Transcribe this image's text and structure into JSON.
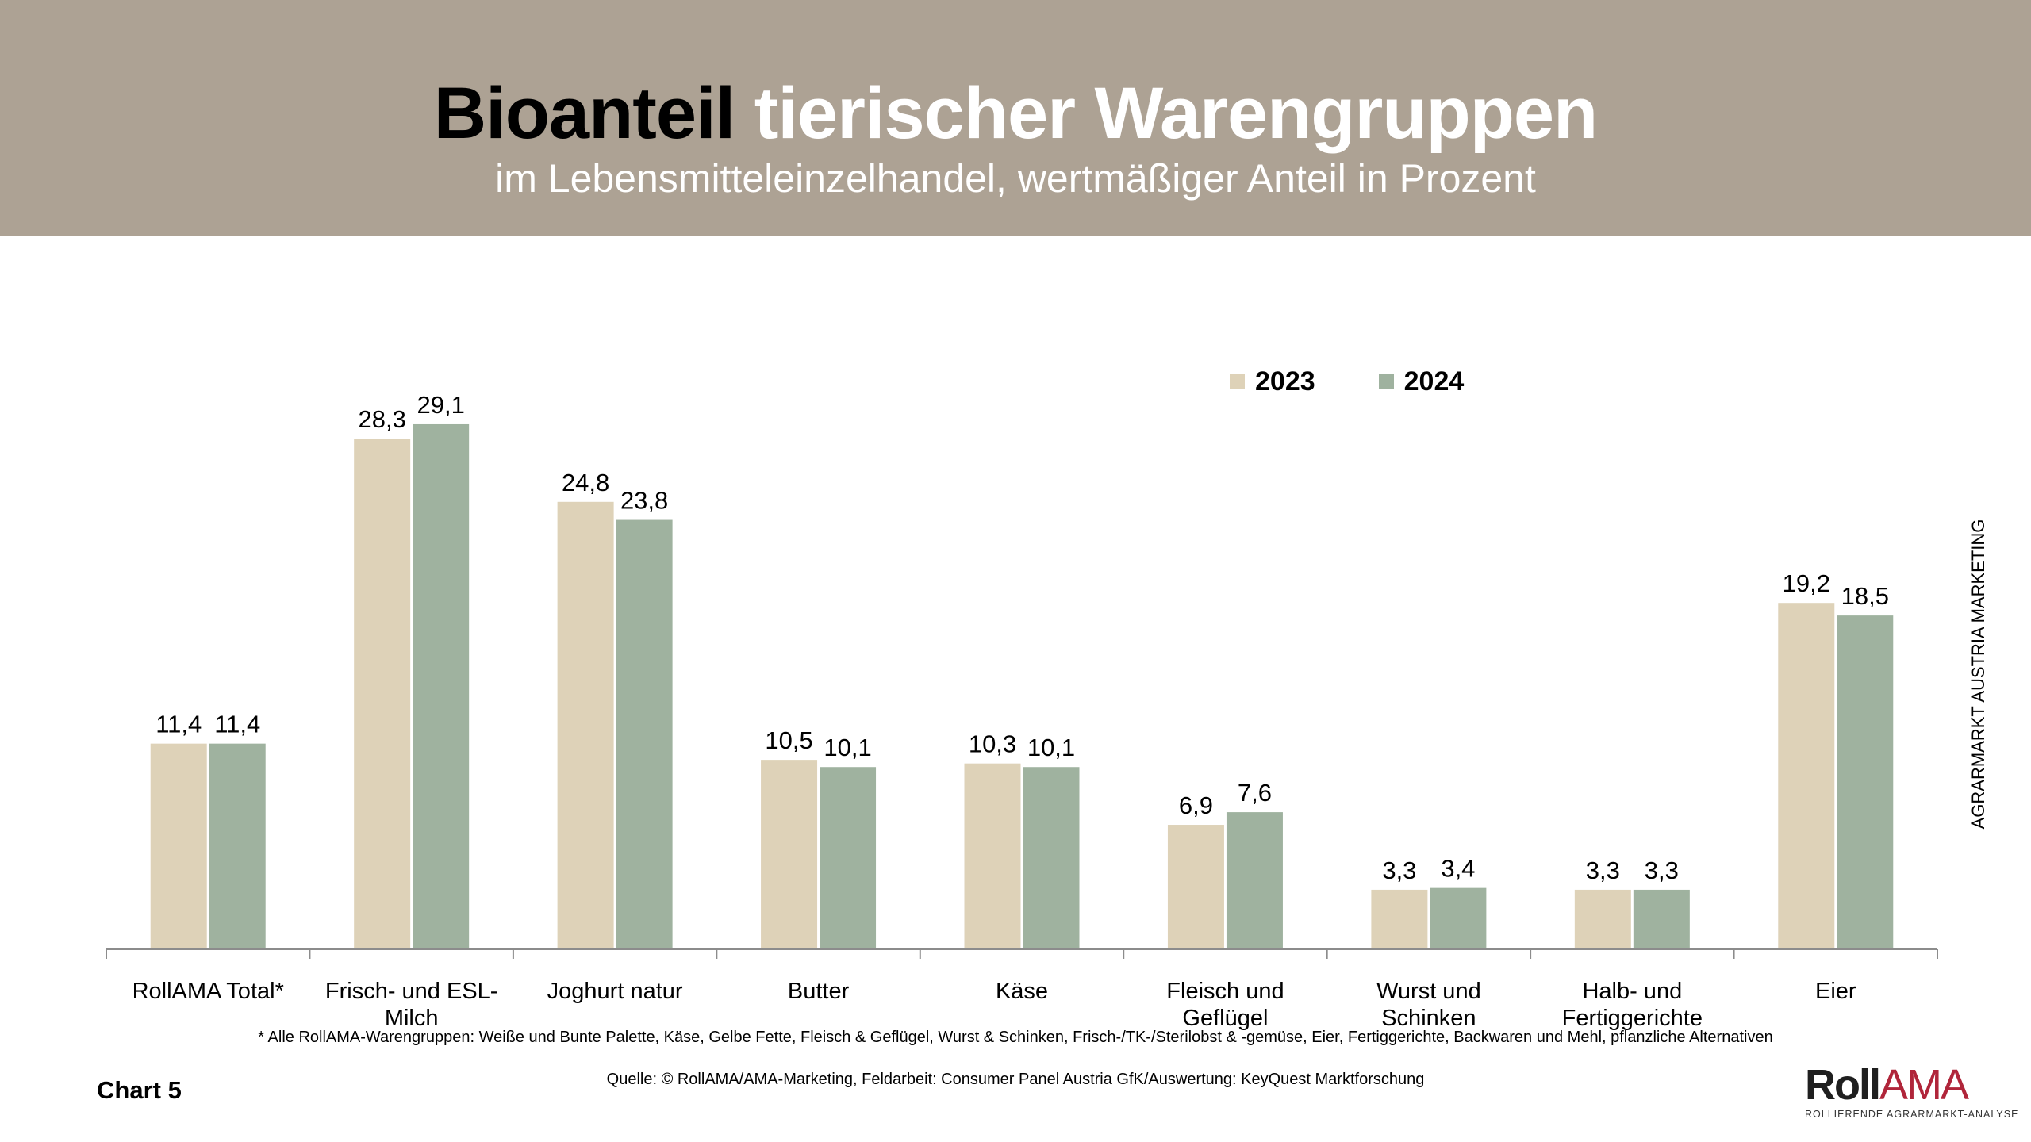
{
  "header": {
    "title_dark": "Bioanteil",
    "title_light": "tierischer Warengruppen",
    "subtitle": "im Lebensmitteleinzelhandel, wertmäßiger Anteil in Prozent",
    "background_color": "#ada294"
  },
  "chart_data": {
    "type": "bar",
    "title": "Bioanteil tierischer Warengruppen",
    "subtitle": "im Lebensmitteleinzelhandel, wertmäßiger Anteil in Prozent",
    "xlabel": "",
    "ylabel": "",
    "ylim": [
      0,
      30
    ],
    "grid": false,
    "legend_position": "top-right",
    "categories": [
      [
        "RollAMA Total*"
      ],
      [
        "Frisch- und ESL-",
        "Milch"
      ],
      [
        "Joghurt natur"
      ],
      [
        "Butter"
      ],
      [
        "Käse"
      ],
      [
        "Fleisch und",
        "Geflügel"
      ],
      [
        "Wurst und",
        "Schinken"
      ],
      [
        "Halb- und",
        "Fertiggerichte"
      ],
      [
        "Eier"
      ]
    ],
    "series": [
      {
        "name": "2023",
        "color": "#ded2b8",
        "values": [
          11.4,
          28.3,
          24.8,
          10.5,
          10.3,
          6.9,
          3.3,
          3.3,
          19.2
        ],
        "labels": [
          "11,4",
          "28,3",
          "24,8",
          "10,5",
          "10,3",
          "6,9",
          "3,3",
          "3,3",
          "19,2"
        ]
      },
      {
        "name": "2024",
        "color": "#9fb29f",
        "values": [
          11.4,
          29.1,
          23.8,
          10.1,
          10.1,
          7.6,
          3.4,
          3.3,
          18.5
        ],
        "labels": [
          "11,4",
          "29,1",
          "23,8",
          "10,1",
          "10,1",
          "7,6",
          "3,4",
          "3,3",
          "18,5"
        ]
      }
    ]
  },
  "legend": {
    "items": [
      {
        "label": "2023",
        "color": "#ded2b8"
      },
      {
        "label": "2024",
        "color": "#9fb29f"
      }
    ]
  },
  "side_label": "AGRARMARKT AUSTRIA MARKETING",
  "footnote": "* Alle RollAMA-Warengruppen: Weiße und Bunte Palette, Käse, Gelbe Fette, Fleisch & Geflügel, Wurst & Schinken, Frisch-/TK-/Sterilobst & -gemüse, Eier, Fertiggerichte, Backwaren und Mehl, pflanzliche Alternativen",
  "source": "Quelle: © RollAMA/AMA-Marketing, Feldarbeit: Consumer Panel Austria GfK/Auswertung: KeyQuest Marktforschung",
  "chart_number": "Chart 5",
  "logo": {
    "roll": "Roll",
    "ama": "AMA",
    "tagline": "ROLLIERENDE AGRARMARKT-ANALYSE"
  }
}
